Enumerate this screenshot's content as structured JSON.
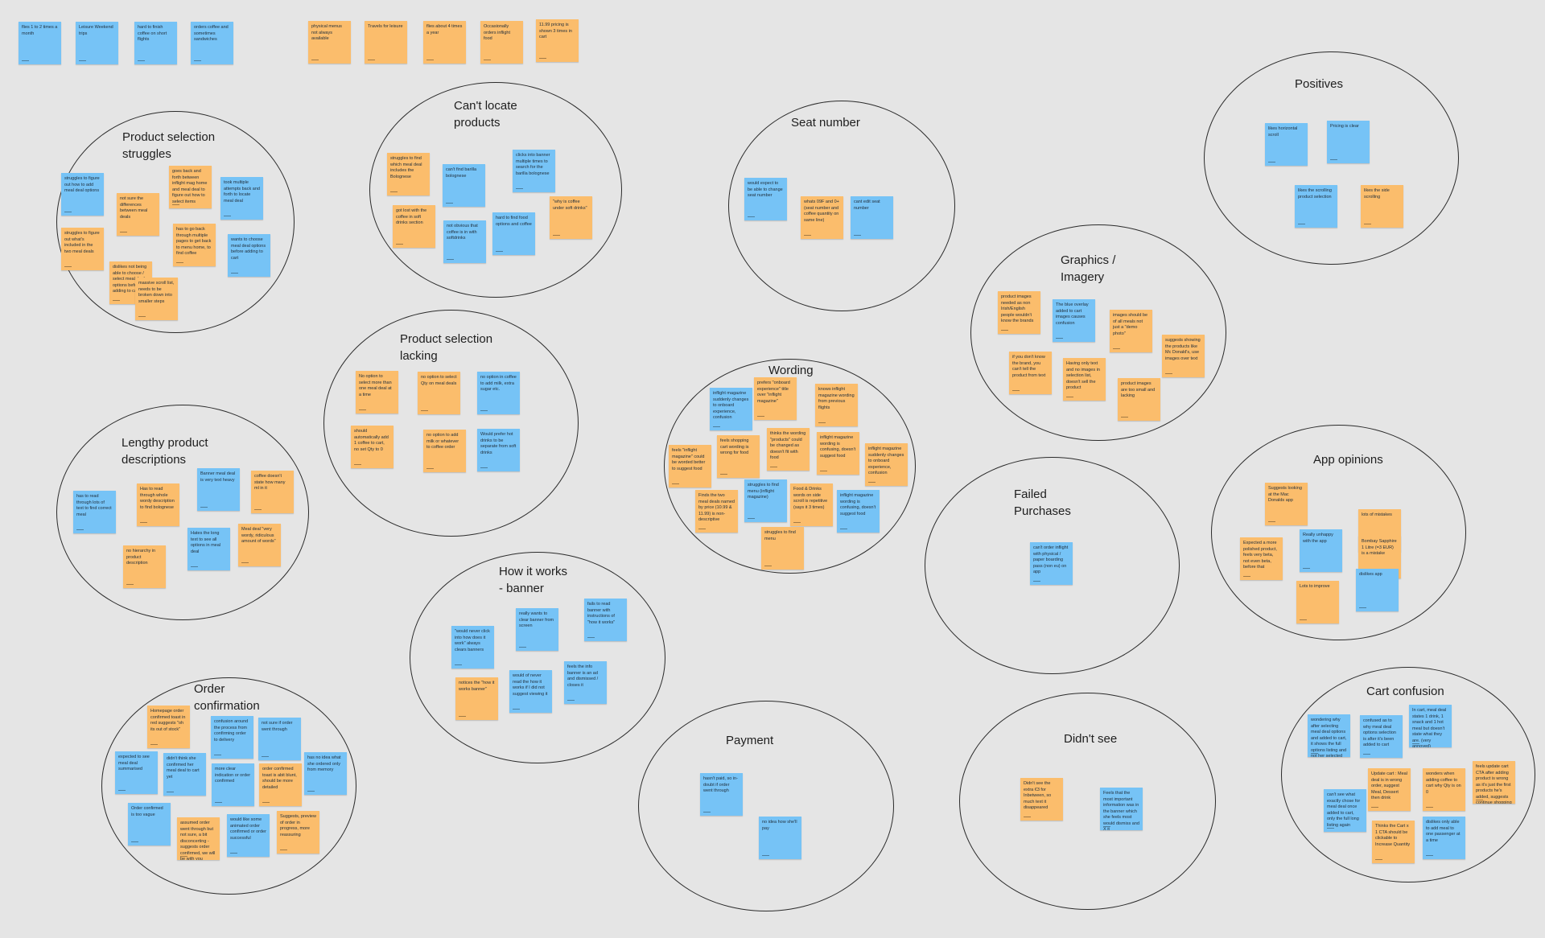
{
  "colors": {
    "background": "#e5e5e5",
    "sticky_blue": "#76c3f6",
    "sticky_orange": "#fbbd6c",
    "outline": "#2b2b2b"
  },
  "loose_notes": [
    {
      "text": "flies 1 to 2 times a month",
      "color": "blue"
    },
    {
      "text": "Leisure Weekend trips",
      "color": "blue"
    },
    {
      "text": "hard to finish coffee on short flights",
      "color": "blue"
    },
    {
      "text": "orders coffee and sometimes sandwiches",
      "color": "blue"
    },
    {
      "text": "physical menus not always available",
      "color": "orange"
    },
    {
      "text": "Travels for leisure",
      "color": "orange"
    },
    {
      "text": "flies about 4 times a year",
      "color": "orange"
    },
    {
      "text": "Occasionally orders inflight food",
      "color": "orange"
    },
    {
      "text": "11.99 pricing is shown 3 times in cart",
      "color": "orange"
    }
  ],
  "clusters": [
    {
      "title": "Product selection\nstruggles",
      "notes": [
        {
          "text": "struggles to figure out how to add meal deal options",
          "color": "blue"
        },
        {
          "text": "not sure the differences between meal deals",
          "color": "orange"
        },
        {
          "text": "goes back and forth between inflight mag home and meal deal to figure out how to select items",
          "color": "orange"
        },
        {
          "text": "took multiple attempts back and forth to locate meal deal",
          "color": "blue"
        },
        {
          "text": "struggles to figure out what's included in the two meal deals",
          "color": "orange"
        },
        {
          "text": "has to go back through multiple pages to get back to menu home, to find coffee",
          "color": "orange"
        },
        {
          "text": "wants to choose meal deal options before adding to cart",
          "color": "blue"
        },
        {
          "text": "dislikes not being able to choose / select meal deal options before adding to cart",
          "color": "orange"
        },
        {
          "text": "massive scroll list, needs to be broken down into smaller steps",
          "color": "orange"
        }
      ]
    },
    {
      "title": "Can't locate\nproducts",
      "notes": [
        {
          "text": "struggles to find which meal deal includes the Bolognese",
          "color": "orange"
        },
        {
          "text": "can't find barilla bolognese",
          "color": "blue"
        },
        {
          "text": "clicks into banner multiple times to search for the barilla bolognese",
          "color": "blue"
        },
        {
          "text": "got lost with the coffee in soft drinks section",
          "color": "orange"
        },
        {
          "text": "not obvious that coffee is in with softdrinks",
          "color": "blue"
        },
        {
          "text": "hard to find food options and coffee",
          "color": "blue"
        },
        {
          "text": "\"why is coffee under soft drinks\"",
          "color": "orange"
        }
      ]
    },
    {
      "title": "Seat number",
      "notes": [
        {
          "text": "would expect to be able to change seat number",
          "color": "blue"
        },
        {
          "text": "whats 09F and 0+ (seat number and coffee quantity on same line)",
          "color": "orange"
        },
        {
          "text": "cant edit seat number",
          "color": "blue"
        }
      ]
    },
    {
      "title": "Positives",
      "notes": [
        {
          "text": "likes horizontal scroll",
          "color": "blue"
        },
        {
          "text": "Pricing is clear",
          "color": "blue"
        },
        {
          "text": "likes the scrolling product selection",
          "color": "blue"
        },
        {
          "text": "likes the side scrolling",
          "color": "orange"
        }
      ]
    },
    {
      "title": "Product selection\nlacking",
      "notes": [
        {
          "text": "No option to select more than one meal deal at a time",
          "color": "orange"
        },
        {
          "text": "no option to select Qty on meal deals",
          "color": "orange"
        },
        {
          "text": "no option in coffee to add milk, extra sugar etc.",
          "color": "blue"
        },
        {
          "text": "should automatically add 1 coffee to cart, no set Qty to 0",
          "color": "orange"
        },
        {
          "text": "no option to add milk or whatever to coffee order",
          "color": "orange"
        },
        {
          "text": "Would prefer hot drinks to be separate from soft drinks",
          "color": "blue"
        }
      ]
    },
    {
      "title": "Graphics /\nImagery",
      "notes": [
        {
          "text": "product images needed as non Irish/English people wouldn't know the brands",
          "color": "orange"
        },
        {
          "text": "The blue overlay added to cart images causes confusion",
          "color": "blue"
        },
        {
          "text": "images should be of all meals not just a \"demo photo\"",
          "color": "orange"
        },
        {
          "text": "suggests showing the products like Mc Donald's, use images over text",
          "color": "orange"
        },
        {
          "text": "if you don't know the brand, you can't tell the product from text",
          "color": "orange"
        },
        {
          "text": "Having only text and no images in selection list, doesn't sell the product",
          "color": "orange"
        },
        {
          "text": "product images are too small and lacking",
          "color": "orange"
        }
      ]
    },
    {
      "title": "Lengthy product\ndescriptions",
      "notes": [
        {
          "text": "has to read through lots of text to find correct meal",
          "color": "blue"
        },
        {
          "text": "Has to read through whole wordy description to find bolognese",
          "color": "orange"
        },
        {
          "text": "Banner meal deal is very text heavy",
          "color": "blue"
        },
        {
          "text": "coffee doesn't state how many ml in it",
          "color": "orange"
        },
        {
          "text": "Hates the long text to see all options in meal deal",
          "color": "blue"
        },
        {
          "text": "Meal deal \"very wordy, ridiculous amount of words\"",
          "color": "orange"
        },
        {
          "text": "no hierarchy in product description",
          "color": "orange"
        }
      ]
    },
    {
      "title": "Wording",
      "notes": [
        {
          "text": "inflight magazine suddenly changes to onboard experience, confusion",
          "color": "blue"
        },
        {
          "text": "prefers \"onboard experience\" title over \"inflight magazine\"",
          "color": "orange"
        },
        {
          "text": "knows inflight magazine wording from previous flights",
          "color": "orange"
        },
        {
          "text": "feels \"inflight magazine\" could be worded better to suggest food",
          "color": "orange"
        },
        {
          "text": "feels shopping cart wording is wrong for food",
          "color": "orange"
        },
        {
          "text": "thinks the wording \"products\" could be changed as doesn't fit with food",
          "color": "orange"
        },
        {
          "text": "inflight magazine wording is confusing, doesn't suggest food",
          "color": "orange"
        },
        {
          "text": "inflight magazine suddenly changes to onboard experience, confusion",
          "color": "orange"
        },
        {
          "text": "Finds the two meal deals named by price (10.99 & 11.99) is non-descriptive",
          "color": "orange"
        },
        {
          "text": "struggles to find menu (inflight magazine)",
          "color": "blue"
        },
        {
          "text": "Food & Drinks words on side scroll is repetitive (says it 3 times)",
          "color": "orange"
        },
        {
          "text": "inflight magazine wording is confusing, doesn't suggest food",
          "color": "blue"
        },
        {
          "text": "struggles to find menu",
          "color": "orange"
        }
      ]
    },
    {
      "title": "App opinions",
      "notes": [
        {
          "text": "Suggests looking at the Mac Donalds app",
          "color": "orange"
        },
        {
          "text": "lots of mistakes",
          "color": "orange"
        },
        {
          "text": "Expected a more polished product, feels very beta, not even beta, before that",
          "color": "orange"
        },
        {
          "text": "Really unhappy with the app",
          "color": "blue"
        },
        {
          "text": "Bombay Sapphire 1 Litre (=3 EUR) is a mistake",
          "color": "orange"
        },
        {
          "text": "Lots to improve",
          "color": "orange"
        },
        {
          "text": "dislikes app",
          "color": "blue"
        }
      ]
    },
    {
      "title": "Failed\nPurchases",
      "notes": [
        {
          "text": "can't order inflight with physical / paper boarding pass (non eu) on app",
          "color": "blue"
        }
      ]
    },
    {
      "title": "How it works\n- banner",
      "notes": [
        {
          "text": "really wants to clear banner from screen",
          "color": "blue"
        },
        {
          "text": "fails to read banner with instructions of \"how it works\"",
          "color": "blue"
        },
        {
          "text": "\"would never click into how does it work\" always clears banners",
          "color": "blue"
        },
        {
          "text": "feels the info banner is an ad and dismissed / closes it",
          "color": "blue"
        },
        {
          "text": "notices the \"how it works banner\"",
          "color": "orange"
        },
        {
          "text": "would of never read the how it works if I did not suggest viewing it",
          "color": "blue"
        }
      ]
    },
    {
      "title": "Order\nconfirmation",
      "notes": [
        {
          "text": "Homepage order confirmed toast in red suggests \"oh its out of stock\"",
          "color": "orange"
        },
        {
          "text": "confusion around the process from confirming order to delivery",
          "color": "blue"
        },
        {
          "text": "not sure if order went through",
          "color": "blue"
        },
        {
          "text": "expected to see meal deal summarised",
          "color": "blue"
        },
        {
          "text": "didn't think she confirmed her meal deal to cart yet",
          "color": "blue"
        },
        {
          "text": "more clear indication or order confirmed",
          "color": "blue"
        },
        {
          "text": "order confirmed toast is abit blunt, should be more detailed",
          "color": "orange"
        },
        {
          "text": "has no idea what she ordered only from memory",
          "color": "blue"
        },
        {
          "text": "Order confirmed is too vague",
          "color": "blue"
        },
        {
          "text": "assumed order went through but not sure, a bit disconcerting - suggests order confirmed, we will be with you shortly",
          "color": "orange"
        },
        {
          "text": "would like some animated order confirmed or order successful",
          "color": "blue"
        },
        {
          "text": "Suggests, preview of order in progress, more reassuring",
          "color": "orange"
        }
      ]
    },
    {
      "title": "Payment",
      "notes": [
        {
          "text": "hasn't paid, so in-doubt if order went through",
          "color": "blue"
        },
        {
          "text": "no idea how she'll pay",
          "color": "blue"
        }
      ]
    },
    {
      "title": "Didn't see",
      "notes": [
        {
          "text": "Didn't see the extra €3 for Inbetween, so much text it disappeared",
          "color": "orange"
        },
        {
          "text": "Feels that the most important information was in the banner which she feels most would dismiss and X it",
          "color": "blue"
        }
      ]
    },
    {
      "title": "Cart confusion",
      "notes": [
        {
          "text": "wondering why after selecting meal deal options and added to cart, it shows the full options listing and not her selected options",
          "color": "blue"
        },
        {
          "text": "confused as to why meal deal options selection is after it's been added to cart",
          "color": "blue"
        },
        {
          "text": "In cart, meal deal states 1 drink, 1 snack and 1 hot meal but doesn't state what they are. (very annoyed)",
          "color": "blue"
        },
        {
          "text": "Update cart : Meal deal is in wrong order, suggest Meal, Dessert then drink",
          "color": "orange"
        },
        {
          "text": "wonders when adding coffee to cart why Qty is on 0",
          "color": "orange"
        },
        {
          "text": "feels update cart CTA after adding product is wrong as it's just the first products he's added, suggests continue shopping",
          "color": "orange"
        },
        {
          "text": "can't see what exactly chose for meal deal once added to cart, only the full long listing again",
          "color": "blue"
        },
        {
          "text": "Thinks the Cart x 1 CTA should be clickable to Increase Quantity",
          "color": "orange"
        },
        {
          "text": "dislikes only able to add meal to one passenger at a time",
          "color": "blue"
        }
      ]
    }
  ]
}
